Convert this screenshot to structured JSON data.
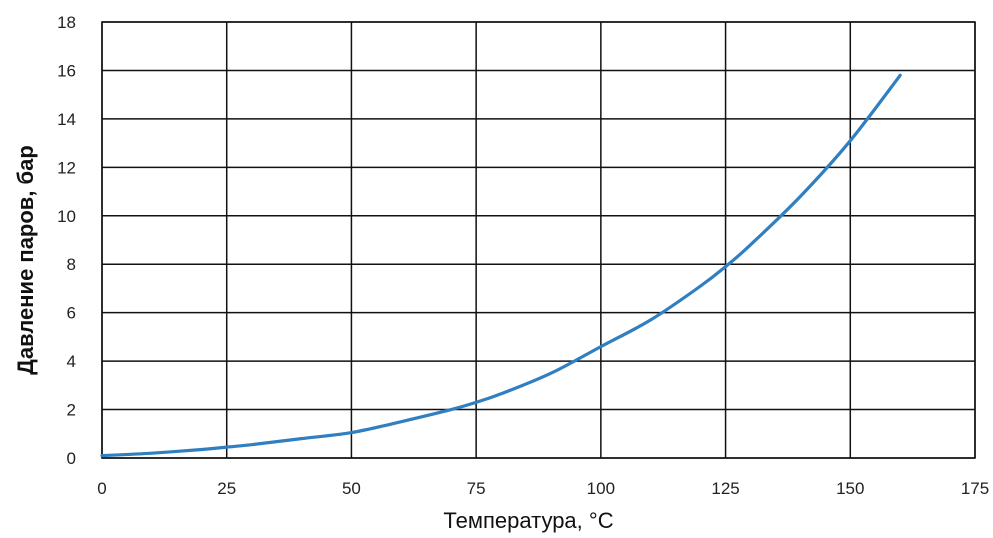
{
  "chart_data": {
    "type": "line",
    "title": "",
    "xlabel": "Температура, °C",
    "ylabel": "Давление паров, бар",
    "xlim": [
      0,
      175
    ],
    "ylim": [
      0,
      18
    ],
    "xticks": [
      "0",
      "25",
      "50",
      "75",
      "100",
      "125",
      "150",
      "175"
    ],
    "yticks": [
      "0",
      "2",
      "4",
      "6",
      "8",
      "10",
      "12",
      "14",
      "16",
      "18"
    ],
    "grid": true,
    "line_color": "#2f7fc1",
    "series": [
      {
        "x": [
          0,
          10,
          20,
          25,
          30,
          40,
          50,
          60,
          70,
          75,
          80,
          90,
          100,
          110,
          120,
          125,
          130,
          140,
          150,
          160
        ],
        "values": [
          0.1,
          0.2,
          0.35,
          0.45,
          0.55,
          0.8,
          1.05,
          1.5,
          2.0,
          2.3,
          2.65,
          3.5,
          4.6,
          5.7,
          7.1,
          7.9,
          8.8,
          10.8,
          13.1,
          15.8
        ]
      }
    ]
  }
}
